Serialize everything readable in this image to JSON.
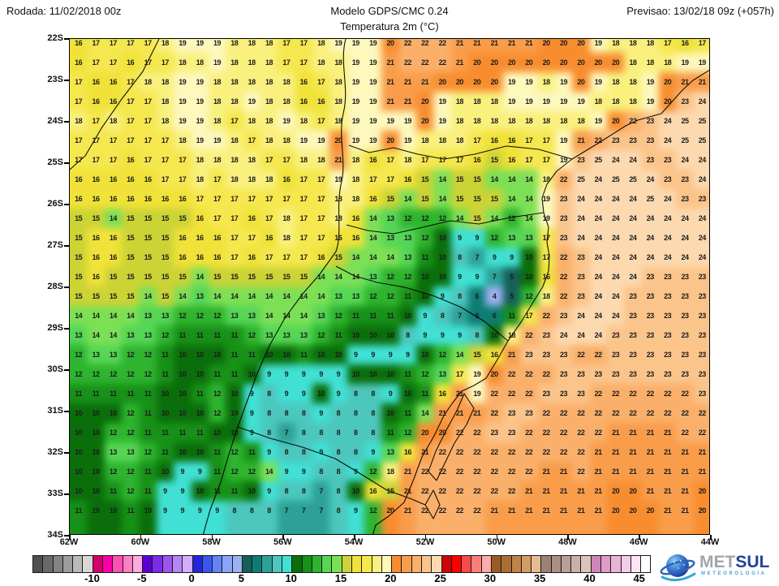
{
  "header": {
    "run_label": "Rodada: 11/02/2018 00z",
    "model_label": "Modelo GDPS/CMC 0.24",
    "forecast_label": "Previsao: 13/02/18 09z (+057h)",
    "subtitle": "Temperatura 2m (°C)"
  },
  "chart_data": {
    "type": "heatmap",
    "title": "Temperatura 2m (°C)",
    "model": "GDPS/CMC 0.24",
    "units": "°C",
    "lat_labels": [
      "22S",
      "23S",
      "24S",
      "25S",
      "26S",
      "27S",
      "28S",
      "29S",
      "30S",
      "31S",
      "32S",
      "33S",
      "34S"
    ],
    "lon_labels": [
      "62W",
      "60W",
      "58W",
      "56W",
      "54W",
      "52W",
      "50W",
      "48W",
      "46W",
      "44W"
    ],
    "grid_shape": [
      25,
      37
    ],
    "values": [
      [
        16,
        17,
        17,
        17,
        17,
        18,
        19,
        19,
        19,
        18,
        18,
        18,
        17,
        17,
        18,
        19,
        19,
        19,
        20,
        22,
        22,
        22,
        21,
        21,
        21,
        21,
        21,
        20,
        20,
        20,
        19,
        18,
        18,
        18,
        17,
        16,
        17
      ],
      [
        16,
        17,
        17,
        16,
        17,
        17,
        18,
        18,
        19,
        18,
        18,
        18,
        17,
        17,
        18,
        18,
        19,
        19,
        21,
        22,
        22,
        22,
        21,
        20,
        20,
        20,
        20,
        20,
        20,
        20,
        20,
        20,
        18,
        18,
        18,
        19,
        19
      ],
      [
        17,
        16,
        16,
        17,
        18,
        18,
        19,
        19,
        18,
        18,
        18,
        18,
        18,
        16,
        17,
        18,
        19,
        19,
        21,
        21,
        21,
        20,
        20,
        20,
        20,
        19,
        19,
        18,
        19,
        20,
        19,
        18,
        18,
        19,
        20,
        21,
        21
      ],
      [
        17,
        16,
        16,
        17,
        17,
        18,
        19,
        19,
        18,
        18,
        19,
        18,
        18,
        16,
        16,
        18,
        19,
        19,
        21,
        21,
        20,
        19,
        18,
        18,
        18,
        19,
        19,
        19,
        19,
        19,
        18,
        18,
        18,
        19,
        20,
        23,
        24
      ],
      [
        18,
        17,
        18,
        17,
        17,
        18,
        19,
        19,
        18,
        17,
        18,
        18,
        19,
        18,
        17,
        18,
        19,
        19,
        19,
        19,
        20,
        19,
        18,
        18,
        18,
        18,
        18,
        18,
        18,
        18,
        19,
        20,
        22,
        23,
        24,
        25,
        25
      ],
      [
        17,
        17,
        17,
        17,
        17,
        17,
        18,
        19,
        19,
        18,
        17,
        18,
        18,
        19,
        19,
        20,
        19,
        19,
        20,
        19,
        18,
        18,
        18,
        17,
        16,
        16,
        17,
        17,
        19,
        21,
        22,
        23,
        23,
        23,
        24,
        25,
        25
      ],
      [
        17,
        17,
        17,
        16,
        17,
        17,
        17,
        18,
        18,
        18,
        18,
        17,
        17,
        18,
        18,
        21,
        18,
        16,
        17,
        18,
        17,
        17,
        17,
        16,
        15,
        16,
        17,
        17,
        19,
        23,
        25,
        24,
        24,
        23,
        23,
        24,
        24
      ],
      [
        16,
        16,
        16,
        16,
        16,
        17,
        17,
        18,
        17,
        18,
        18,
        18,
        16,
        17,
        17,
        19,
        18,
        17,
        17,
        16,
        15,
        14,
        15,
        15,
        14,
        14,
        14,
        18,
        22,
        25,
        24,
        25,
        25,
        24,
        23,
        23,
        24
      ],
      [
        16,
        16,
        16,
        16,
        16,
        16,
        16,
        17,
        17,
        17,
        17,
        17,
        17,
        17,
        17,
        18,
        18,
        16,
        15,
        14,
        15,
        14,
        15,
        15,
        15,
        14,
        14,
        19,
        23,
        24,
        24,
        24,
        24,
        25,
        24,
        23,
        23
      ],
      [
        15,
        15,
        14,
        15,
        15,
        15,
        15,
        16,
        17,
        17,
        16,
        17,
        18,
        17,
        17,
        18,
        16,
        14,
        13,
        12,
        12,
        12,
        14,
        15,
        14,
        12,
        14,
        19,
        23,
        24,
        24,
        24,
        24,
        24,
        24,
        24,
        24
      ],
      [
        15,
        16,
        16,
        15,
        15,
        15,
        16,
        16,
        16,
        17,
        17,
        16,
        18,
        17,
        17,
        16,
        16,
        14,
        13,
        13,
        12,
        10,
        9,
        9,
        12,
        13,
        13,
        17,
        23,
        24,
        24,
        24,
        24,
        24,
        24,
        24,
        24
      ],
      [
        15,
        16,
        16,
        15,
        15,
        15,
        16,
        16,
        16,
        17,
        16,
        17,
        17,
        17,
        16,
        15,
        14,
        14,
        14,
        13,
        11,
        10,
        8,
        7,
        9,
        9,
        10,
        17,
        22,
        23,
        24,
        24,
        24,
        24,
        24,
        24,
        24
      ],
      [
        15,
        16,
        15,
        15,
        15,
        15,
        15,
        14,
        15,
        15,
        15,
        15,
        15,
        15,
        14,
        14,
        14,
        13,
        12,
        12,
        10,
        10,
        9,
        9,
        7,
        5,
        10,
        16,
        22,
        23,
        24,
        24,
        24,
        23,
        23,
        23,
        23
      ],
      [
        15,
        15,
        15,
        15,
        14,
        15,
        14,
        13,
        14,
        14,
        14,
        14,
        14,
        14,
        14,
        13,
        13,
        12,
        12,
        11,
        10,
        9,
        8,
        6,
        4,
        5,
        12,
        18,
        22,
        23,
        24,
        24,
        23,
        23,
        23,
        23,
        23
      ],
      [
        14,
        14,
        14,
        14,
        13,
        13,
        12,
        12,
        12,
        13,
        13,
        14,
        14,
        14,
        13,
        12,
        11,
        11,
        11,
        10,
        9,
        8,
        7,
        6,
        6,
        11,
        17,
        22,
        23,
        24,
        24,
        24,
        23,
        23,
        23,
        23,
        23
      ],
      [
        13,
        14,
        14,
        13,
        13,
        12,
        11,
        11,
        11,
        11,
        12,
        13,
        13,
        13,
        12,
        11,
        10,
        10,
        10,
        8,
        9,
        9,
        9,
        8,
        10,
        18,
        22,
        23,
        24,
        24,
        24,
        23,
        23,
        23,
        23,
        23,
        23
      ],
      [
        12,
        13,
        13,
        12,
        12,
        11,
        10,
        10,
        10,
        11,
        11,
        10,
        10,
        11,
        10,
        10,
        9,
        9,
        9,
        9,
        10,
        12,
        14,
        15,
        16,
        21,
        23,
        23,
        23,
        22,
        22,
        23,
        23,
        23,
        23,
        23,
        23
      ],
      [
        12,
        12,
        12,
        12,
        12,
        11,
        10,
        10,
        11,
        11,
        10,
        9,
        9,
        9,
        9,
        9,
        10,
        10,
        10,
        11,
        12,
        13,
        17,
        19,
        20,
        22,
        22,
        22,
        23,
        23,
        23,
        23,
        23,
        23,
        23,
        23,
        23
      ],
      [
        11,
        11,
        11,
        11,
        11,
        10,
        10,
        11,
        12,
        10,
        9,
        8,
        9,
        9,
        10,
        9,
        8,
        8,
        9,
        10,
        11,
        16,
        21,
        19,
        22,
        22,
        22,
        23,
        23,
        23,
        22,
        22,
        22,
        22,
        22,
        22,
        23
      ],
      [
        10,
        10,
        10,
        12,
        11,
        10,
        10,
        10,
        12,
        10,
        9,
        8,
        8,
        8,
        9,
        8,
        8,
        8,
        10,
        11,
        14,
        21,
        21,
        21,
        22,
        23,
        23,
        22,
        22,
        22,
        22,
        22,
        22,
        22,
        22,
        22,
        22
      ],
      [
        10,
        10,
        12,
        12,
        11,
        11,
        11,
        11,
        10,
        10,
        9,
        8,
        7,
        8,
        8,
        8,
        8,
        8,
        11,
        12,
        20,
        20,
        22,
        22,
        23,
        23,
        22,
        22,
        22,
        22,
        22,
        21,
        21,
        21,
        21,
        22,
        22
      ],
      [
        10,
        10,
        13,
        13,
        12,
        11,
        10,
        10,
        11,
        12,
        11,
        9,
        8,
        8,
        9,
        8,
        8,
        9,
        13,
        16,
        21,
        22,
        22,
        22,
        22,
        22,
        22,
        22,
        22,
        22,
        21,
        21,
        21,
        21,
        21,
        21,
        21
      ],
      [
        10,
        10,
        12,
        12,
        11,
        10,
        9,
        9,
        11,
        12,
        12,
        14,
        9,
        9,
        8,
        8,
        9,
        12,
        18,
        21,
        22,
        22,
        22,
        22,
        22,
        22,
        22,
        21,
        21,
        22,
        21,
        21,
        21,
        21,
        21,
        21,
        21
      ],
      [
        10,
        10,
        11,
        12,
        11,
        9,
        9,
        10,
        11,
        11,
        10,
        9,
        8,
        8,
        7,
        8,
        10,
        16,
        15,
        21,
        22,
        22,
        22,
        22,
        22,
        22,
        21,
        21,
        21,
        21,
        21,
        20,
        20,
        21,
        21,
        21,
        20
      ],
      [
        11,
        10,
        10,
        11,
        10,
        9,
        9,
        9,
        9,
        8,
        8,
        8,
        7,
        7,
        7,
        8,
        9,
        12,
        20,
        21,
        22,
        22,
        22,
        22,
        21,
        21,
        21,
        21,
        21,
        21,
        21,
        20,
        20,
        20,
        21,
        21,
        20
      ]
    ],
    "legend": {
      "ticks": [
        -10,
        -5,
        0,
        5,
        10,
        15,
        20,
        25,
        30,
        35,
        40,
        45
      ],
      "min_value": -16,
      "max_value": 46,
      "value_offset": 16,
      "segment_colors": [
        "#4f4f4f",
        "#696969",
        "#838383",
        "#9d9d9d",
        "#b9b9b9",
        "#d7d7d7",
        "#d4006a",
        "#fb00a6",
        "#ff4fb2",
        "#ff7fc4",
        "#ffabdc",
        "#5a00d2",
        "#7c2be6",
        "#9a55ee",
        "#b685f6",
        "#d2aefc",
        "#2226d6",
        "#3c55f2",
        "#6583f8",
        "#8aa4fa",
        "#9db0f2",
        "#166059",
        "#0d7d73",
        "#2da197",
        "#4cc7bd",
        "#40e0d4",
        "#0a6e0a",
        "#179117",
        "#2eb42e",
        "#55d655",
        "#7ce055",
        "#ccd335",
        "#f0e238",
        "#f5e74e",
        "#f9f07e",
        "#fdf8bc",
        "#f88d2f",
        "#f99d4b",
        "#fab06a",
        "#fbc48a",
        "#fcd9af",
        "#cf0404",
        "#fb0000",
        "#fb4a4a",
        "#fc7d7d",
        "#fdaaaa",
        "#9a5a28",
        "#ac6d35",
        "#c08448",
        "#d19d66",
        "#e5bc90",
        "#9c8076",
        "#ab8e84",
        "#bb9e95",
        "#cbb0a9",
        "#dcc3bd",
        "#cf86b8",
        "#de9cc7",
        "#e9b4d7",
        "#f3cde6",
        "#fae6f2",
        "#ffffff"
      ]
    }
  },
  "logo": {
    "met": "MET",
    "sul": "SUL",
    "subtitle": "METEOROLOGIA"
  }
}
